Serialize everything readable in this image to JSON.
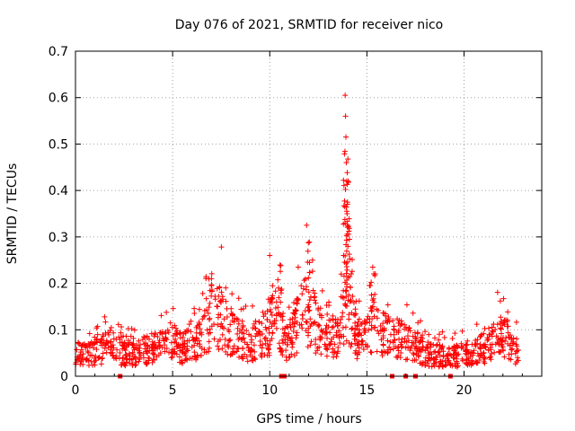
{
  "chart_data": {
    "type": "scatter",
    "title": "Day 076 of 2021, SRMTID for receiver nico",
    "xlabel": "GPS time / hours",
    "ylabel": "SRMTID / TECUs",
    "xlim": [
      0,
      24
    ],
    "ylim": [
      0,
      0.7
    ],
    "x_ticks": [
      0,
      5,
      10,
      15,
      20
    ],
    "x_tick_labels": [
      "0",
      "5",
      "10",
      "15",
      "20"
    ],
    "y_ticks": [
      0,
      0.1,
      0.2,
      0.3,
      0.4,
      0.5,
      0.6,
      0.7
    ],
    "y_tick_labels": [
      "0",
      "0.1",
      "0.2",
      "0.3",
      "0.4",
      "0.5",
      "0.6",
      "0.7"
    ],
    "grid": true,
    "marker": "+",
    "color": "#ff0000",
    "data_range_hours": [
      0,
      22.8
    ],
    "series": [
      {
        "name": "SRMTID",
        "trend": [
          [
            0.0,
            0.05
          ],
          [
            0.5,
            0.045
          ],
          [
            1.0,
            0.05
          ],
          [
            1.5,
            0.06
          ],
          [
            2.0,
            0.075
          ],
          [
            2.3,
            0.05
          ],
          [
            3.0,
            0.05
          ],
          [
            3.5,
            0.055
          ],
          [
            4.0,
            0.06
          ],
          [
            4.5,
            0.065
          ],
          [
            5.0,
            0.075
          ],
          [
            5.5,
            0.06
          ],
          [
            6.0,
            0.07
          ],
          [
            6.5,
            0.08
          ],
          [
            7.0,
            0.12
          ],
          [
            7.5,
            0.13
          ],
          [
            8.0,
            0.09
          ],
          [
            8.5,
            0.075
          ],
          [
            9.0,
            0.07
          ],
          [
            9.5,
            0.085
          ],
          [
            10.0,
            0.1
          ],
          [
            10.4,
            0.14
          ],
          [
            10.8,
            0.07
          ],
          [
            11.2,
            0.09
          ],
          [
            11.6,
            0.13
          ],
          [
            12.0,
            0.14
          ],
          [
            12.3,
            0.11
          ],
          [
            12.8,
            0.08
          ],
          [
            13.3,
            0.08
          ],
          [
            13.7,
            0.12
          ],
          [
            14.0,
            0.15
          ],
          [
            14.5,
            0.08
          ],
          [
            15.0,
            0.08
          ],
          [
            15.3,
            0.11
          ],
          [
            15.8,
            0.09
          ],
          [
            16.3,
            0.08
          ],
          [
            16.8,
            0.08
          ],
          [
            17.3,
            0.07
          ],
          [
            17.8,
            0.055
          ],
          [
            18.3,
            0.045
          ],
          [
            18.8,
            0.045
          ],
          [
            19.3,
            0.04
          ],
          [
            19.8,
            0.045
          ],
          [
            20.3,
            0.05
          ],
          [
            20.8,
            0.06
          ],
          [
            21.3,
            0.06
          ],
          [
            21.8,
            0.09
          ],
          [
            22.2,
            0.08
          ],
          [
            22.5,
            0.06
          ],
          [
            22.8,
            0.05
          ]
        ],
        "peaks": [
          {
            "x": 7.0,
            "y": 0.21
          },
          {
            "x": 10.0,
            "y": 0.26
          },
          {
            "x": 11.9,
            "y": 0.325
          },
          {
            "x": 12.2,
            "y": 0.25
          },
          {
            "x": 13.8,
            "y": 0.26
          },
          {
            "x": 13.88,
            "y": 0.605
          },
          {
            "x": 13.9,
            "y": 0.56
          },
          {
            "x": 13.92,
            "y": 0.515
          },
          {
            "x": 13.94,
            "y": 0.46
          },
          {
            "x": 13.96,
            "y": 0.42
          },
          {
            "x": 13.98,
            "y": 0.35
          },
          {
            "x": 14.0,
            "y": 0.325
          },
          {
            "x": 14.1,
            "y": 0.295
          },
          {
            "x": 15.3,
            "y": 0.235
          }
        ],
        "zero_markers_hours": [
          2.3,
          10.6,
          10.75,
          16.3,
          17.0,
          17.5,
          19.3
        ]
      }
    ]
  }
}
